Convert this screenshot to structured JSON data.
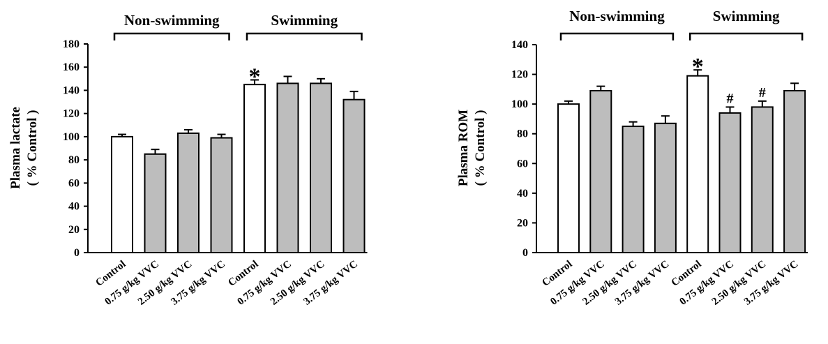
{
  "chart_data": [
    {
      "type": "bar",
      "ylabel": [
        "Plasma lactate",
        "( % Control )"
      ],
      "ylim": [
        0,
        180
      ],
      "yticks": [
        0,
        20,
        40,
        60,
        80,
        100,
        120,
        140,
        160,
        180
      ],
      "groups": [
        {
          "label": "Non-swimming",
          "categories": [
            0,
            1,
            2,
            3
          ]
        },
        {
          "label": "Swimming",
          "categories": [
            4,
            5,
            6,
            7
          ]
        }
      ],
      "categories": [
        "Control",
        "0.75 g/kg VVC",
        "2.50 g/kg VVC",
        "3.75 g/kg VVC",
        "Control",
        "0.75 g/kg VVC",
        "2.50 g/kg VVC",
        "3.75 g/kg VVC"
      ],
      "values": [
        100,
        85,
        103,
        99,
        145,
        146,
        146,
        132
      ],
      "errors": [
        2,
        4,
        3,
        3,
        4,
        6,
        4,
        7
      ],
      "fills": [
        "#ffffff",
        "#bdbdbd",
        "#bdbdbd",
        "#bdbdbd",
        "#ffffff",
        "#bdbdbd",
        "#bdbdbd",
        "#bdbdbd"
      ],
      "annotations": [
        "",
        "",
        "",
        "",
        "*",
        "",
        "",
        ""
      ]
    },
    {
      "type": "bar",
      "ylabel": [
        "Plasma ROM",
        "( % Control )"
      ],
      "ylim": [
        0,
        140
      ],
      "yticks": [
        0,
        20,
        40,
        60,
        80,
        100,
        120,
        140
      ],
      "groups": [
        {
          "label": "Non-swimming",
          "categories": [
            0,
            1,
            2,
            3
          ]
        },
        {
          "label": "Swimming",
          "categories": [
            4,
            5,
            6,
            7
          ]
        }
      ],
      "categories": [
        "Control",
        "0.75 g/kg VVC",
        "2.50 g/kg VVC",
        "3.75 g/kg VVC",
        "Control",
        "0.75 g/kg VVC",
        "2.50 g/kg VVC",
        "3.75 g/kg VVC"
      ],
      "values": [
        100,
        109,
        85,
        87,
        119,
        94,
        98,
        109
      ],
      "errors": [
        2,
        3,
        3,
        5,
        4,
        4,
        4,
        5
      ],
      "fills": [
        "#ffffff",
        "#bdbdbd",
        "#bdbdbd",
        "#bdbdbd",
        "#ffffff",
        "#bdbdbd",
        "#bdbdbd",
        "#bdbdbd"
      ],
      "annotations": [
        "",
        "",
        "",
        "",
        "*",
        "#",
        "#",
        ""
      ]
    }
  ]
}
